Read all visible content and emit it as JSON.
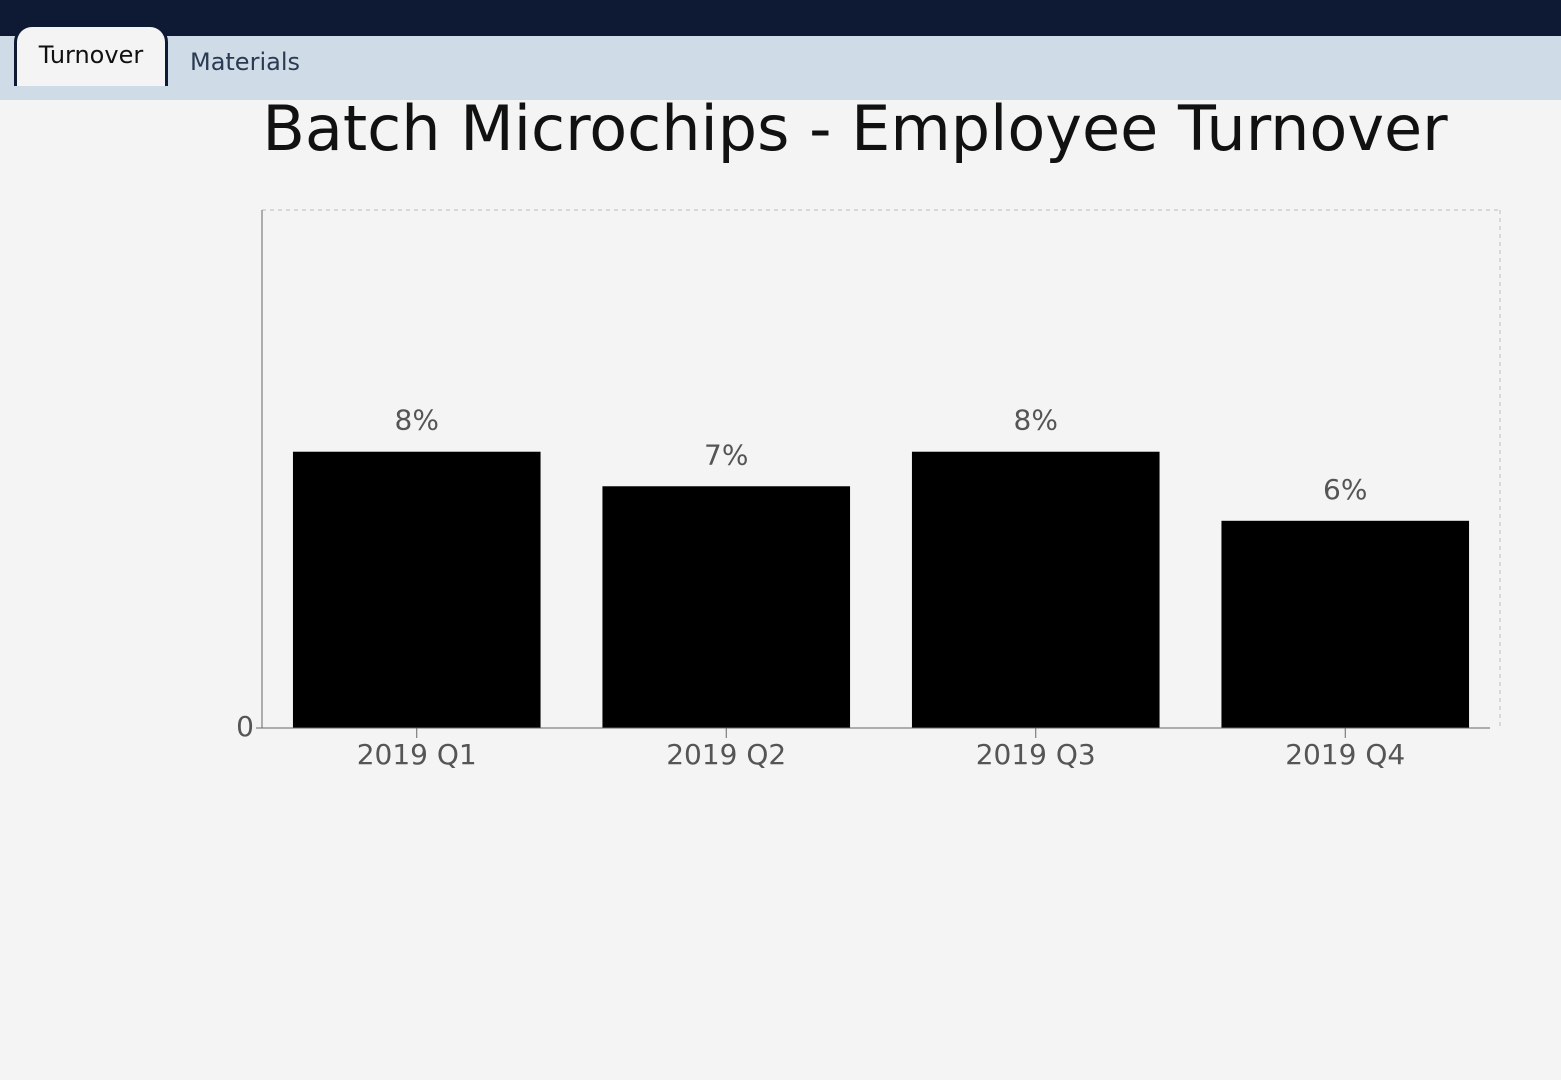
{
  "tabs": [
    "Turnover",
    "Materials"
  ],
  "chart_data": {
    "type": "bar",
    "title": "Batch Microchips - Employee Turnover",
    "categories": [
      "2019 Q1",
      "2019 Q2",
      "2019 Q3",
      "2019 Q4"
    ],
    "values": [
      8,
      7,
      8,
      6
    ],
    "value_labels": [
      "8%",
      "7%",
      "8%",
      "6%"
    ],
    "color": "#000000",
    "ylim": [
      0,
      15
    ],
    "yticks": [
      0
    ],
    "grid": false
  }
}
